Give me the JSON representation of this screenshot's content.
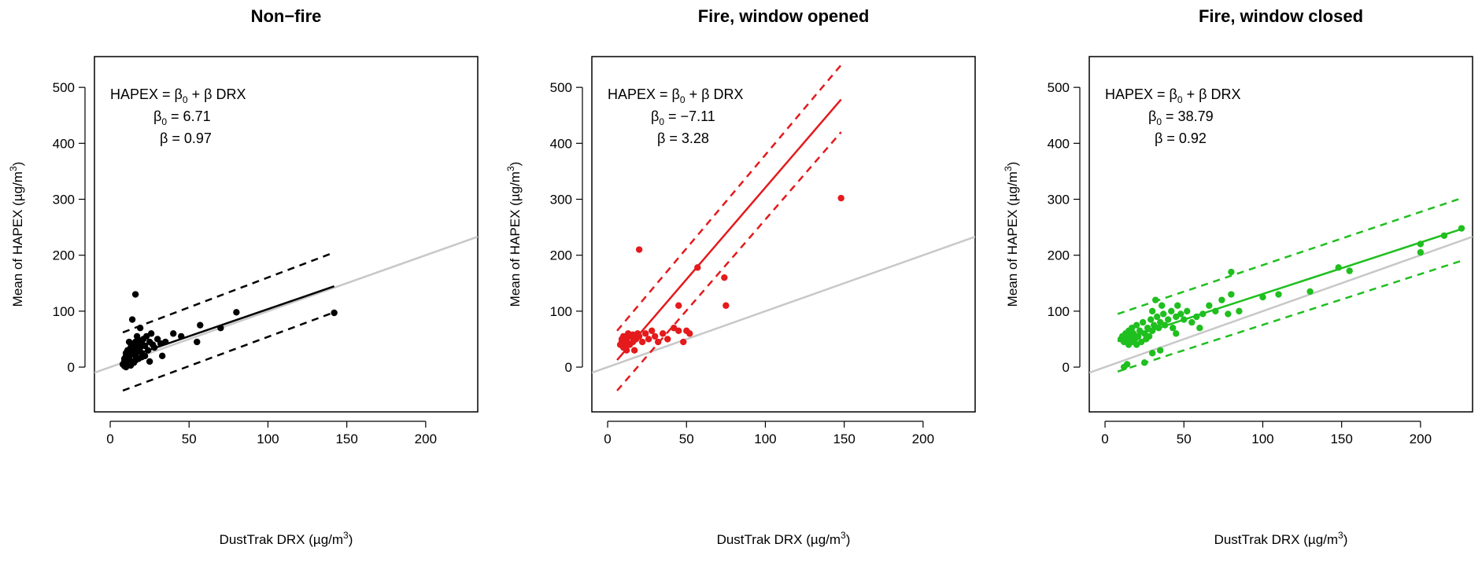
{
  "colors": {
    "black": "#000000",
    "red": "#e41a1c",
    "green": "#1fbf1f",
    "identity": "#c8c8c8"
  },
  "chart_data": [
    {
      "type": "scatter",
      "title": "Non−fire",
      "xlabel_main": "DustTrak DRX (µg/m",
      "xlabel_sup": "3",
      "xlabel_end": ")",
      "ylabel_main": "Mean of HAPEX (µg/m",
      "ylabel_sup": "3",
      "ylabel_end": ")",
      "xlim": [
        -10,
        233
      ],
      "ylim": [
        -80,
        555
      ],
      "xticks": [
        0,
        50,
        100,
        150,
        200
      ],
      "yticks": [
        0,
        100,
        200,
        300,
        400,
        500
      ],
      "color": "#000000",
      "eq_line1": "HAPEX = β",
      "eq_sub1": "0",
      "eq_line1_end": " + β DRX",
      "eq_b0_label": "β",
      "eq_b0_sub": "0",
      "eq_b0_value": " = 6.71",
      "eq_b_value": "β = 0.97",
      "fit": {
        "intercept": 6.71,
        "slope": 0.97,
        "x_range": [
          8,
          142
        ]
      },
      "bounds": {
        "upper": [
          [
            8,
            62
          ],
          [
            142,
            205
          ]
        ],
        "lower": [
          [
            8,
            -42
          ],
          [
            142,
            98
          ]
        ]
      },
      "points": [
        [
          8,
          5
        ],
        [
          9,
          10
        ],
        [
          9,
          15
        ],
        [
          10,
          8
        ],
        [
          10,
          20
        ],
        [
          10,
          25
        ],
        [
          11,
          12
        ],
        [
          11,
          30
        ],
        [
          12,
          18
        ],
        [
          12,
          22
        ],
        [
          13,
          28
        ],
        [
          13,
          35
        ],
        [
          14,
          10
        ],
        [
          14,
          40
        ],
        [
          15,
          25
        ],
        [
          15,
          32
        ],
        [
          16,
          45
        ],
        [
          16,
          20
        ],
        [
          17,
          38
        ],
        [
          17,
          30
        ],
        [
          18,
          28
        ],
        [
          18,
          48
        ],
        [
          19,
          35
        ],
        [
          20,
          42
        ],
        [
          20,
          25
        ],
        [
          21,
          50
        ],
        [
          22,
          38
        ],
        [
          23,
          55
        ],
        [
          24,
          30
        ],
        [
          25,
          45
        ],
        [
          26,
          60
        ],
        [
          27,
          40
        ],
        [
          28,
          35
        ],
        [
          30,
          50
        ],
        [
          32,
          42
        ],
        [
          14,
          85
        ],
        [
          16,
          130
        ],
        [
          17,
          55
        ],
        [
          19,
          70
        ],
        [
          12,
          45
        ],
        [
          25,
          10
        ],
        [
          33,
          20
        ],
        [
          35,
          45
        ],
        [
          40,
          60
        ],
        [
          45,
          55
        ],
        [
          55,
          45
        ],
        [
          57,
          75
        ],
        [
          70,
          70
        ],
        [
          80,
          98
        ],
        [
          142,
          97
        ],
        [
          9,
          2
        ],
        [
          10,
          0
        ],
        [
          11,
          4
        ],
        [
          12,
          6
        ],
        [
          13,
          3
        ],
        [
          15,
          8
        ],
        [
          16,
          12
        ],
        [
          18,
          15
        ],
        [
          20,
          18
        ],
        [
          22,
          20
        ]
      ]
    },
    {
      "type": "scatter",
      "title": "Fire, window opened",
      "xlabel_main": "DustTrak DRX (µg/m",
      "xlabel_sup": "3",
      "xlabel_end": ")",
      "ylabel_main": "Mean of HAPEX (µg/m",
      "ylabel_sup": "3",
      "ylabel_end": ")",
      "xlim": [
        -10,
        233
      ],
      "ylim": [
        -80,
        555
      ],
      "xticks": [
        0,
        50,
        100,
        150,
        200
      ],
      "yticks": [
        0,
        100,
        200,
        300,
        400,
        500
      ],
      "color": "#e41a1c",
      "eq_line1": "HAPEX = β",
      "eq_sub1": "0",
      "eq_line1_end": " + β DRX",
      "eq_b0_label": "β",
      "eq_b0_sub": "0",
      "eq_b0_value": " = −7.11",
      "eq_b_value": "β = 3.28",
      "fit": {
        "intercept": -7.11,
        "slope": 3.28,
        "x_range": [
          6,
          148
        ]
      },
      "bounds": {
        "upper": [
          [
            6,
            65
          ],
          [
            148,
            540
          ]
        ],
        "lower": [
          [
            6,
            -42
          ],
          [
            148,
            420
          ]
        ]
      },
      "points": [
        [
          8,
          40
        ],
        [
          9,
          50
        ],
        [
          10,
          35
        ],
        [
          10,
          55
        ],
        [
          11,
          45
        ],
        [
          12,
          30
        ],
        [
          12,
          50
        ],
        [
          13,
          60
        ],
        [
          14,
          40
        ],
        [
          15,
          55
        ],
        [
          16,
          45
        ],
        [
          17,
          30
        ],
        [
          18,
          50
        ],
        [
          19,
          60
        ],
        [
          20,
          210
        ],
        [
          20,
          55
        ],
        [
          22,
          45
        ],
        [
          24,
          60
        ],
        [
          26,
          50
        ],
        [
          28,
          65
        ],
        [
          30,
          55
        ],
        [
          32,
          45
        ],
        [
          35,
          60
        ],
        [
          38,
          50
        ],
        [
          42,
          70
        ],
        [
          45,
          65
        ],
        [
          45,
          110
        ],
        [
          48,
          45
        ],
        [
          50,
          65
        ],
        [
          52,
          60
        ],
        [
          57,
          178
        ],
        [
          74,
          160
        ],
        [
          75,
          110
        ],
        [
          148,
          302
        ],
        [
          9,
          45
        ],
        [
          11,
          38
        ],
        [
          13,
          42
        ],
        [
          16,
          58
        ]
      ]
    },
    {
      "type": "scatter",
      "title": "Fire, window closed",
      "xlabel_main": "DustTrak DRX (µg/m",
      "xlabel_sup": "3",
      "xlabel_end": ")",
      "ylabel_main": "Mean of HAPEX (µg/m",
      "ylabel_sup": "3",
      "ylabel_end": ")",
      "xlim": [
        -10,
        233
      ],
      "ylim": [
        -80,
        555
      ],
      "xticks": [
        0,
        50,
        100,
        150,
        200
      ],
      "yticks": [
        0,
        100,
        200,
        300,
        400,
        500
      ],
      "color": "#1fbf1f",
      "eq_line1": "HAPEX = β",
      "eq_sub1": "0",
      "eq_line1_end": " + β DRX",
      "eq_b0_label": "β",
      "eq_b0_sub": "0",
      "eq_b0_value": " = 38.79",
      "eq_b_value": "β = 0.92",
      "fit": {
        "intercept": 38.79,
        "slope": 0.92,
        "x_range": [
          8,
          226
        ]
      },
      "bounds": {
        "upper": [
          [
            8,
            95
          ],
          [
            226,
            302
          ]
        ],
        "lower": [
          [
            8,
            -8
          ],
          [
            226,
            190
          ]
        ]
      },
      "points": [
        [
          10,
          50
        ],
        [
          11,
          55
        ],
        [
          12,
          45
        ],
        [
          13,
          60
        ],
        [
          14,
          50
        ],
        [
          15,
          65
        ],
        [
          15,
          40
        ],
        [
          16,
          55
        ],
        [
          17,
          70
        ],
        [
          17,
          45
        ],
        [
          18,
          60
        ],
        [
          19,
          50
        ],
        [
          20,
          75
        ],
        [
          20,
          40
        ],
        [
          21,
          55
        ],
        [
          22,
          65
        ],
        [
          23,
          45
        ],
        [
          24,
          80
        ],
        [
          25,
          60
        ],
        [
          26,
          50
        ],
        [
          27,
          70
        ],
        [
          28,
          55
        ],
        [
          29,
          85
        ],
        [
          30,
          65
        ],
        [
          30,
          100
        ],
        [
          31,
          75
        ],
        [
          32,
          120
        ],
        [
          33,
          90
        ],
        [
          34,
          70
        ],
        [
          35,
          80
        ],
        [
          36,
          110
        ],
        [
          37,
          95
        ],
        [
          38,
          75
        ],
        [
          40,
          85
        ],
        [
          42,
          100
        ],
        [
          43,
          70
        ],
        [
          45,
          90
        ],
        [
          46,
          110
        ],
        [
          48,
          95
        ],
        [
          50,
          85
        ],
        [
          52,
          100
        ],
        [
          55,
          80
        ],
        [
          58,
          90
        ],
        [
          62,
          95
        ],
        [
          66,
          110
        ],
        [
          70,
          100
        ],
        [
          74,
          120
        ],
        [
          78,
          95
        ],
        [
          80,
          130
        ],
        [
          80,
          170
        ],
        [
          85,
          100
        ],
        [
          100,
          125
        ],
        [
          110,
          130
        ],
        [
          130,
          135
        ],
        [
          148,
          178
        ],
        [
          155,
          172
        ],
        [
          200,
          205
        ],
        [
          200,
          220
        ],
        [
          215,
          235
        ],
        [
          226,
          248
        ],
        [
          12,
          0
        ],
        [
          14,
          5
        ],
        [
          25,
          8
        ],
        [
          30,
          25
        ],
        [
          35,
          30
        ],
        [
          45,
          60
        ],
        [
          60,
          70
        ]
      ]
    }
  ]
}
